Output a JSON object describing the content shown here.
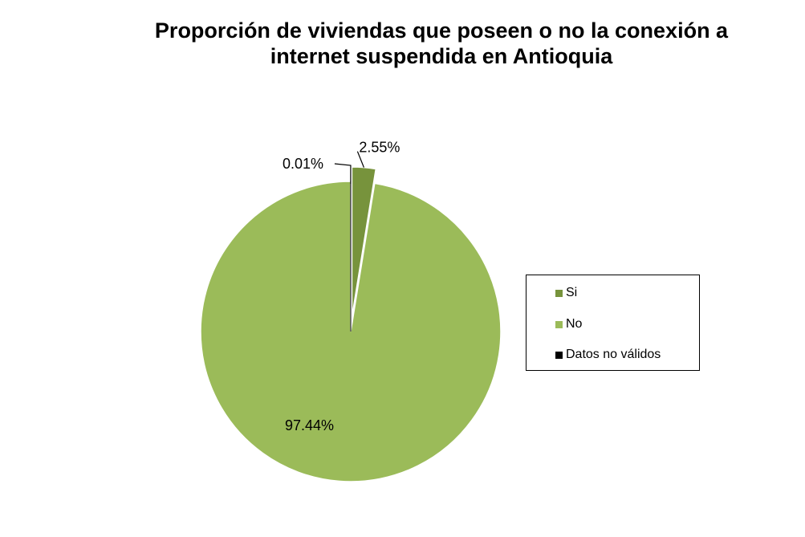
{
  "chart_data": {
    "type": "pie",
    "title_lines": [
      "Proporción de viviendas que poseen o no la conexión a",
      "internet suspendida en Antioquia"
    ],
    "slices": [
      {
        "name": "Si",
        "value": 2.55,
        "label": "2.55%",
        "color": "#77933c"
      },
      {
        "name": "No",
        "value": 97.44,
        "label": "97.44%",
        "color": "#9bbb59"
      },
      {
        "name": "Datos no válidos",
        "value": 0.01,
        "label": "0.01%",
        "color": "#000000"
      }
    ],
    "legend_position": "right"
  }
}
